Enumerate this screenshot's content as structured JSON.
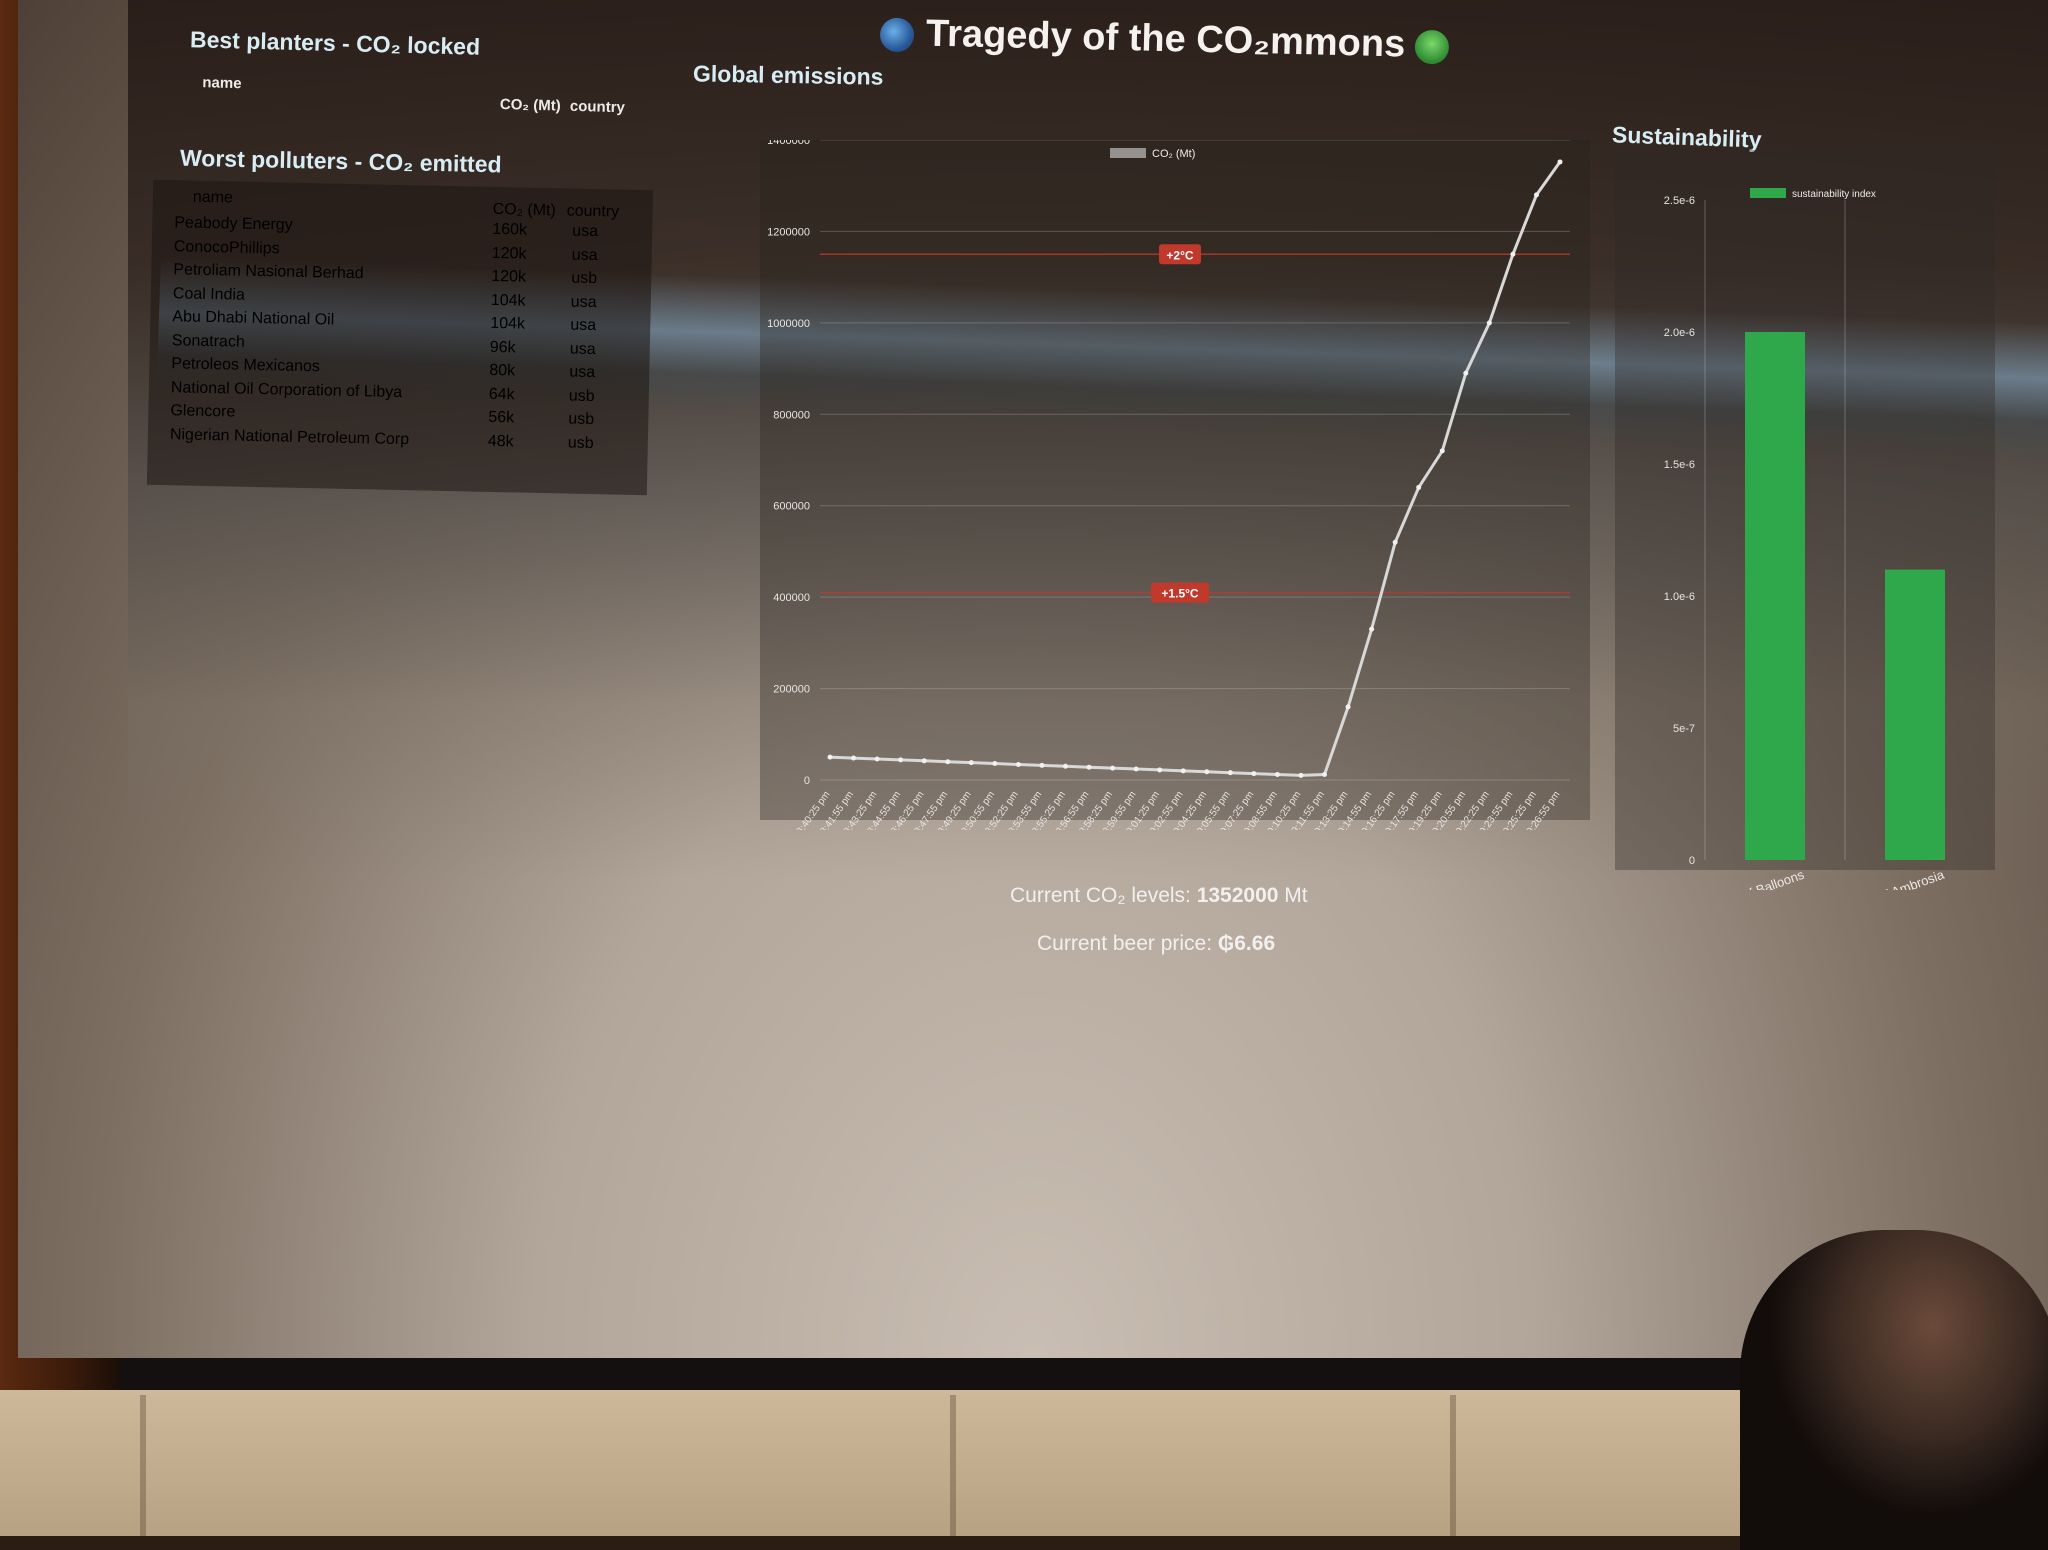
{
  "header": {
    "title": "Tragedy of the CO₂mmons"
  },
  "planters": {
    "title": "Best planters - CO₂ locked",
    "col_name": "name",
    "col_co2": "CO₂ (Mt)",
    "col_country": "country"
  },
  "polluters": {
    "title": "Worst polluters - CO₂ emitted",
    "col_name": "name",
    "col_co2": "CO₂ (Mt)",
    "col_country": "country",
    "rows": [
      {
        "name": "Peabody Energy",
        "co2": "160k",
        "country": "usa"
      },
      {
        "name": "ConocoPhillips",
        "co2": "120k",
        "country": "usa"
      },
      {
        "name": "Petroliam Nasional Berhad",
        "co2": "120k",
        "country": "usb"
      },
      {
        "name": "Coal India",
        "co2": "104k",
        "country": "usa"
      },
      {
        "name": "Abu Dhabi National Oil",
        "co2": "104k",
        "country": "usa"
      },
      {
        "name": "Sonatrach",
        "co2": "96k",
        "country": "usa"
      },
      {
        "name": "Petroleos Mexicanos",
        "co2": "80k",
        "country": "usa"
      },
      {
        "name": "National Oil Corporation of Libya",
        "co2": "64k",
        "country": "usb"
      },
      {
        "name": "Glencore",
        "co2": "56k",
        "country": "usb"
      },
      {
        "name": "Nigerian National Petroleum Corp",
        "co2": "48k",
        "country": "usb"
      }
    ]
  },
  "emissions": {
    "title": "Global emissions",
    "current_label": "Current CO₂ levels: ",
    "current_value": "1352000",
    "current_unit": " Mt",
    "beer_label": "Current beer price: ",
    "beer_value": "₲6.66"
  },
  "sustainability": {
    "title": "Sustainability"
  },
  "chart_data": [
    {
      "type": "line",
      "title": "",
      "legend": "CO₂ (Mt)",
      "legend_position": "top-center",
      "series_color": "#d8d8d8",
      "ylim": [
        0,
        1400000
      ],
      "yticks": [
        "0",
        "200000",
        "400000",
        "600000",
        "800000",
        "1000000",
        "1200000",
        "1400000"
      ],
      "annotations": [
        {
          "label": "+2°C",
          "y": 1150000,
          "color": "#c0392b"
        },
        {
          "label": "+1.5°C",
          "y": 410000,
          "color": "#c0392b"
        }
      ],
      "x": [
        "8:40:25 pm",
        "8:41:55 pm",
        "8:43:25 pm",
        "8:44:55 pm",
        "8:46:25 pm",
        "8:47:55 pm",
        "8:49:25 pm",
        "8:50:55 pm",
        "8:52:25 pm",
        "8:53:55 pm",
        "8:55:25 pm",
        "8:56:55 pm",
        "8:58:25 pm",
        "8:59:55 pm",
        "9:01:25 pm",
        "9:02:55 pm",
        "9:04:25 pm",
        "9:05:55 pm",
        "9:07:25 pm",
        "9:08:55 pm",
        "9:10:25 pm",
        "9:11:55 pm",
        "9:13:25 pm",
        "9:14:55 pm",
        "9:16:25 pm",
        "9:17:55 pm",
        "9:19:25 pm",
        "9:20:55 pm",
        "9:22:25 pm",
        "9:23:55 pm",
        "9:25:25 pm",
        "9:26:55 pm"
      ],
      "y": [
        50000,
        48000,
        46000,
        44000,
        42000,
        40000,
        38000,
        36000,
        34000,
        32000,
        30000,
        28000,
        26000,
        24000,
        22000,
        20000,
        18000,
        16000,
        14000,
        12000,
        10000,
        12000,
        160000,
        330000,
        520000,
        640000,
        720000,
        890000,
        1000000,
        1150000,
        1280000,
        1352000
      ]
    },
    {
      "type": "bar",
      "title": "",
      "legend": "sustainability index",
      "legend_position": "top-right",
      "bar_color": "#2ea84a",
      "ylim": [
        0,
        2.5e-06
      ],
      "yticks": [
        "0",
        "5e-7",
        "1.0e-6",
        "1.5e-6",
        "2.0e-6",
        "2.5e-6"
      ],
      "categories": [
        "United States of Balloons",
        "United States of Ambrosia"
      ],
      "values": [
        2e-06,
        1.1e-06
      ]
    }
  ]
}
